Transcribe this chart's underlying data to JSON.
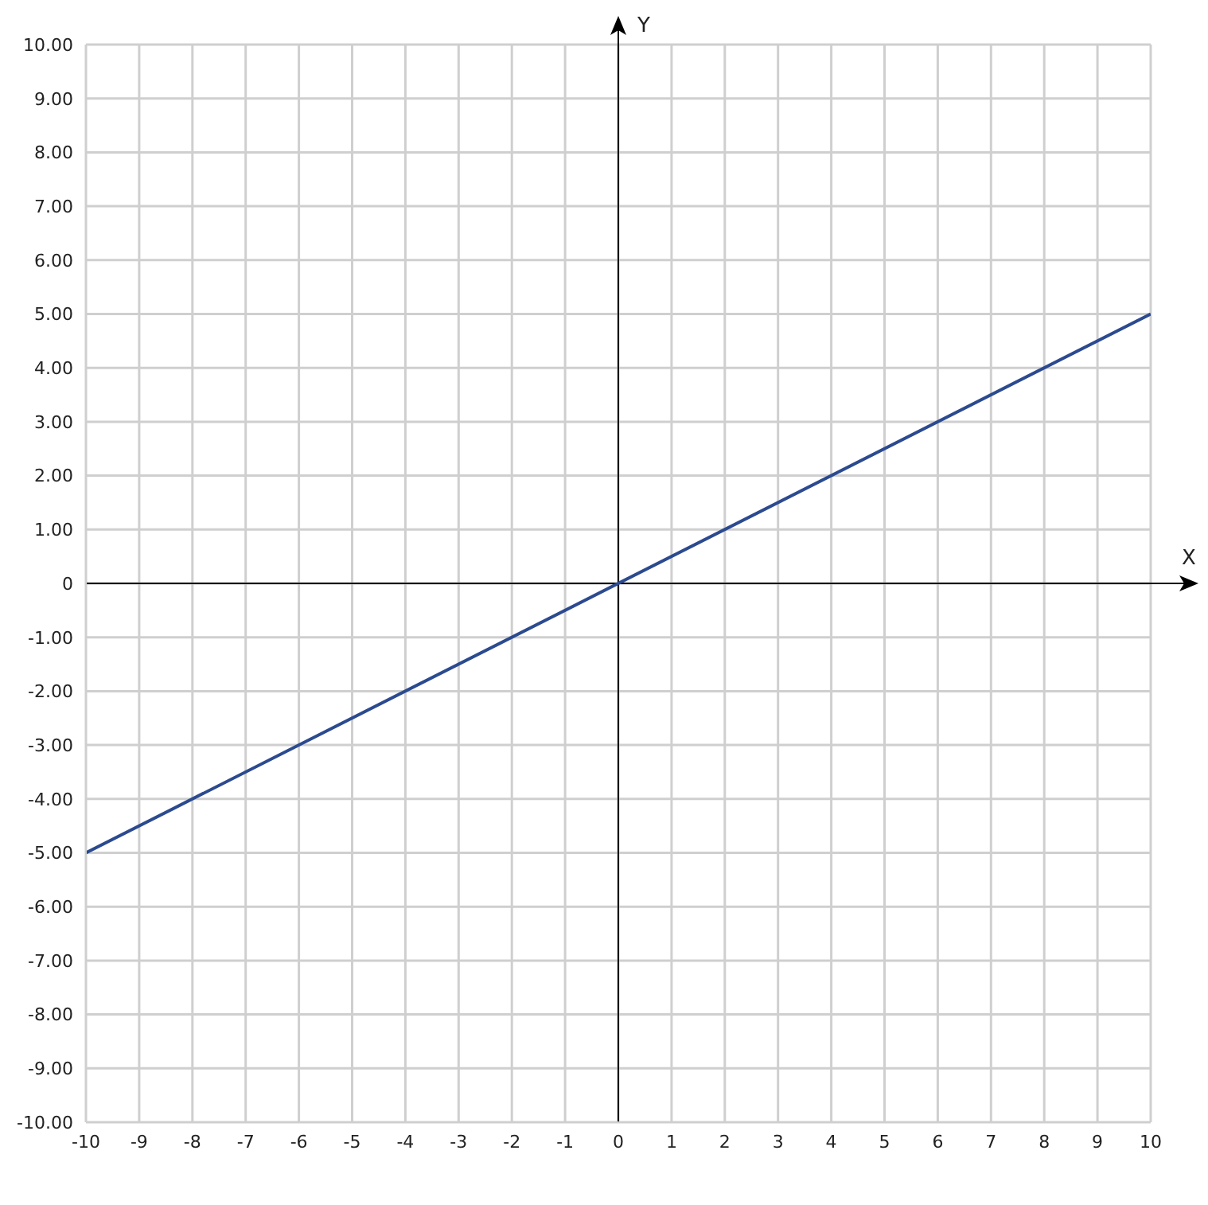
{
  "chart_data": {
    "type": "line",
    "xlabel": "X",
    "ylabel": "Y",
    "x": [
      -10,
      10
    ],
    "series": [
      {
        "color": "#2b4a8f",
        "values": [
          -5,
          5
        ]
      }
    ],
    "xlim": [
      -10,
      10
    ],
    "xticks": [
      -10,
      -9,
      -8,
      -7,
      -6,
      -5,
      -4,
      -3,
      -2,
      -1,
      0,
      1,
      2,
      3,
      4,
      5,
      6,
      7,
      8,
      9,
      10
    ],
    "ylim": [
      -10,
      10
    ],
    "yticks": [
      {
        "value": -10,
        "label": "-10.00"
      },
      {
        "value": -9,
        "label": "-9.00"
      },
      {
        "value": -8,
        "label": "-8.00"
      },
      {
        "value": -7,
        "label": "-7.00"
      },
      {
        "value": -6,
        "label": "-6.00"
      },
      {
        "value": -5,
        "label": "-5.00"
      },
      {
        "value": -4,
        "label": "-4.00"
      },
      {
        "value": -3,
        "label": "-3.00"
      },
      {
        "value": -2,
        "label": "-2.00"
      },
      {
        "value": -1,
        "label": "-1.00"
      },
      0,
      {
        "value": 1,
        "label": "1.00"
      },
      {
        "value": 2,
        "label": "2.00"
      },
      {
        "value": 3,
        "label": "3.00"
      },
      {
        "value": 4,
        "label": "4.00"
      },
      {
        "value": 5,
        "label": "5.00"
      },
      {
        "value": 6,
        "label": "6.00"
      },
      {
        "value": 7,
        "label": "7.00"
      },
      {
        "value": 8,
        "label": "8.00"
      },
      {
        "value": 9,
        "label": "9.00"
      },
      {
        "value": 10,
        "label": "10.00"
      }
    ],
    "grid": true,
    "marker": "none",
    "line_style": "solid",
    "legend": false
  }
}
